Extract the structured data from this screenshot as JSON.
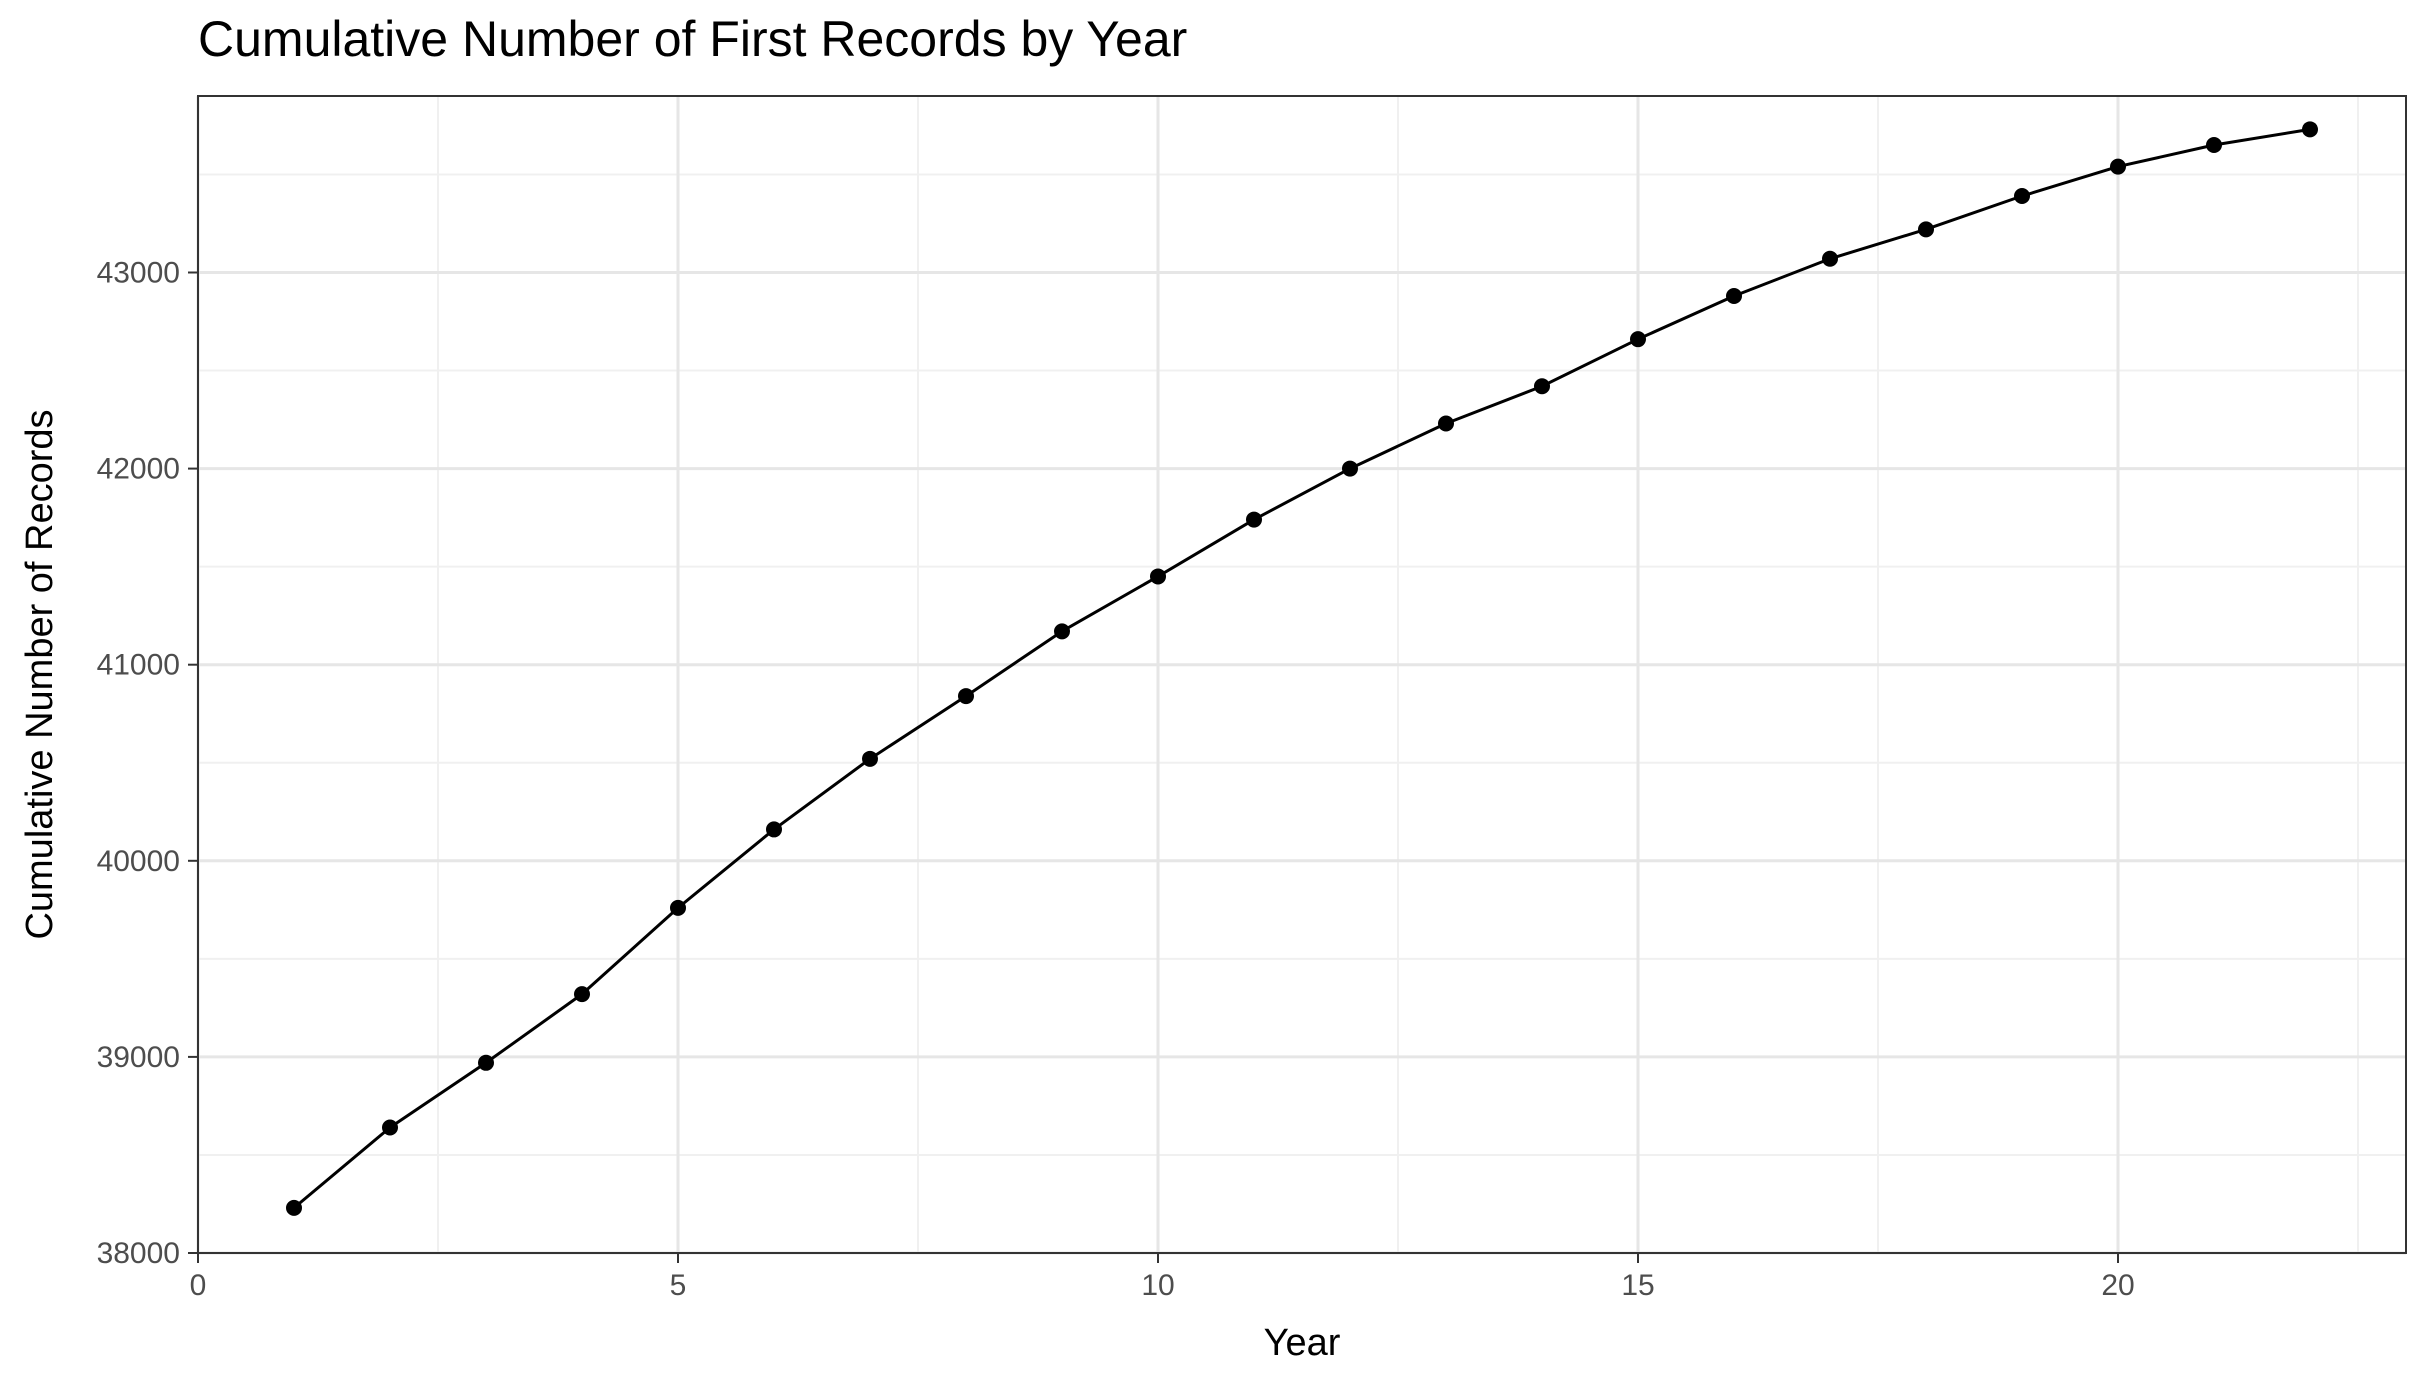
{
  "chart_data": {
    "type": "line",
    "title": "Cumulative Number of First Records by Year",
    "xlabel": "Year",
    "ylabel": "Cumulative Number of Records",
    "xlim": [
      0,
      23
    ],
    "ylim": [
      38000,
      43900
    ],
    "x_ticks": [
      0,
      5,
      10,
      15,
      20
    ],
    "y_ticks": [
      38000,
      39000,
      40000,
      41000,
      42000,
      43000
    ],
    "grid": true,
    "legend": "none",
    "series": [
      {
        "color": "#000000",
        "x": [
          1,
          2,
          3,
          4,
          5,
          6,
          7,
          8,
          9,
          10,
          11,
          12,
          13,
          14,
          15,
          16,
          17,
          18,
          19,
          20,
          21,
          22
        ],
        "y": [
          38230,
          38640,
          38970,
          39320,
          39760,
          40160,
          40520,
          40840,
          41170,
          41450,
          41740,
          42000,
          42230,
          42420,
          42660,
          42880,
          43070,
          43220,
          43390,
          43540,
          43650,
          43730
        ]
      }
    ]
  }
}
